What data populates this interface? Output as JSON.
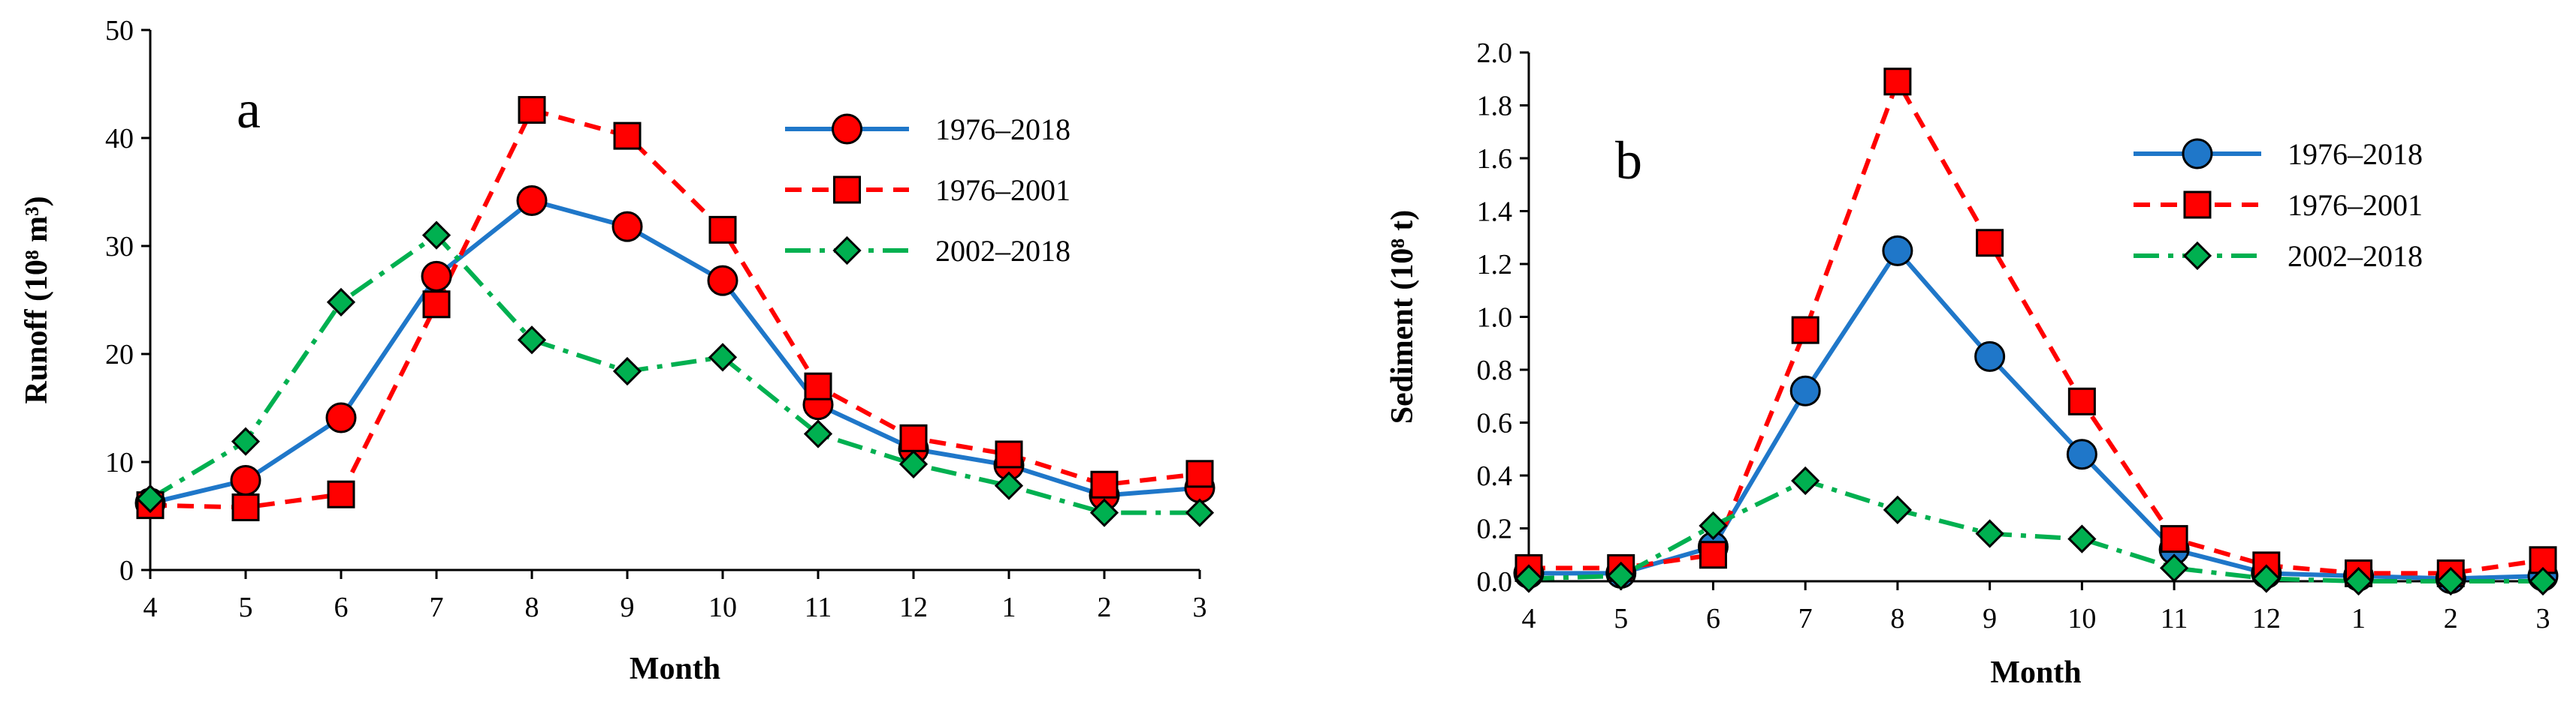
{
  "chart_data": [
    {
      "type": "line",
      "panel_label": "a",
      "ylabel": "Runoff (10⁸ m³)",
      "xlabel": "Month",
      "categories": [
        "4",
        "5",
        "6",
        "7",
        "8",
        "9",
        "10",
        "11",
        "12",
        "1",
        "2",
        "3"
      ],
      "ylim": [
        0,
        50
      ],
      "yticks": [
        "0",
        "10",
        "20",
        "30",
        "40",
        "50"
      ],
      "grid": false,
      "legend_position": "top-right",
      "series": [
        {
          "name": "1976–2018",
          "color": "#1F77C9",
          "dash": "solid",
          "marker": "circle",
          "values": [
            6.2,
            8.3,
            14.1,
            27.2,
            34.2,
            31.8,
            26.8,
            15.3,
            11.2,
            9.7,
            6.9,
            7.6
          ]
        },
        {
          "name": "1976–2001",
          "color": "#FF0000",
          "dash": "dashed",
          "marker": "square",
          "values": [
            6.0,
            5.8,
            7.0,
            24.6,
            42.6,
            40.2,
            31.5,
            17.0,
            12.2,
            10.7,
            7.9,
            8.9
          ]
        },
        {
          "name": "2002–2018",
          "color": "#00B050",
          "dash": "dash-dot",
          "marker": "diamond",
          "values": [
            6.6,
            11.9,
            24.8,
            31.0,
            21.3,
            18.4,
            19.7,
            12.6,
            9.8,
            7.8,
            5.3,
            5.3
          ]
        }
      ]
    },
    {
      "type": "line",
      "panel_label": "b",
      "ylabel": "Sediment (10⁸ t)",
      "xlabel": "Month",
      "categories": [
        "4",
        "5",
        "6",
        "7",
        "8",
        "9",
        "10",
        "11",
        "12",
        "1",
        "2",
        "3"
      ],
      "ylim": [
        0,
        2.0
      ],
      "yticks": [
        "0.0",
        "0.2",
        "0.4",
        "0.6",
        "0.8",
        "1.0",
        "1.2",
        "1.4",
        "1.6",
        "1.8",
        "2.0"
      ],
      "grid": false,
      "legend_position": "top-right",
      "series": [
        {
          "name": "1976–2018",
          "color": "#1F77C9",
          "dash": "solid",
          "marker": "circle",
          "values": [
            0.03,
            0.03,
            0.13,
            0.72,
            1.25,
            0.85,
            0.48,
            0.12,
            0.03,
            0.02,
            0.01,
            0.02
          ]
        },
        {
          "name": "1976–2001",
          "color": "#FF0000",
          "dash": "dashed",
          "marker": "square",
          "values": [
            0.05,
            0.05,
            0.1,
            0.95,
            1.89,
            1.28,
            0.68,
            0.16,
            0.06,
            0.03,
            0.03,
            0.08
          ]
        },
        {
          "name": "2002–2018",
          "color": "#00B050",
          "dash": "dash-dot",
          "marker": "diamond",
          "values": [
            0.01,
            0.02,
            0.21,
            0.38,
            0.27,
            0.18,
            0.16,
            0.05,
            0.01,
            0.0,
            0.0,
            0.0
          ]
        }
      ]
    }
  ]
}
